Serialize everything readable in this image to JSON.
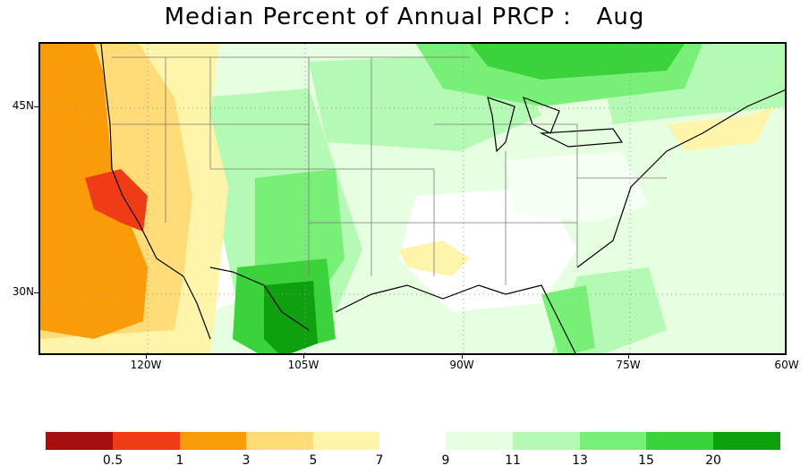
{
  "title": "Median Percent of Annual PRCP :   Aug",
  "map": {
    "lat_labels": [
      "45N",
      "30N"
    ],
    "lon_labels": [
      "120W",
      "105W",
      "90W",
      "75W",
      "60W"
    ]
  },
  "colorbar": {
    "dry_colors": [
      "#a50f0f",
      "#f03c14",
      "#fa9b0a",
      "#ffdc78",
      "#fff5aa"
    ],
    "wet_colors": [
      "#e6ffe1",
      "#b4fab4",
      "#78f078",
      "#3cd23c",
      "#0fa00f"
    ],
    "labels": [
      "0.5",
      "1",
      "3",
      "5",
      "7",
      "9",
      "11",
      "13",
      "15",
      "20"
    ]
  }
}
